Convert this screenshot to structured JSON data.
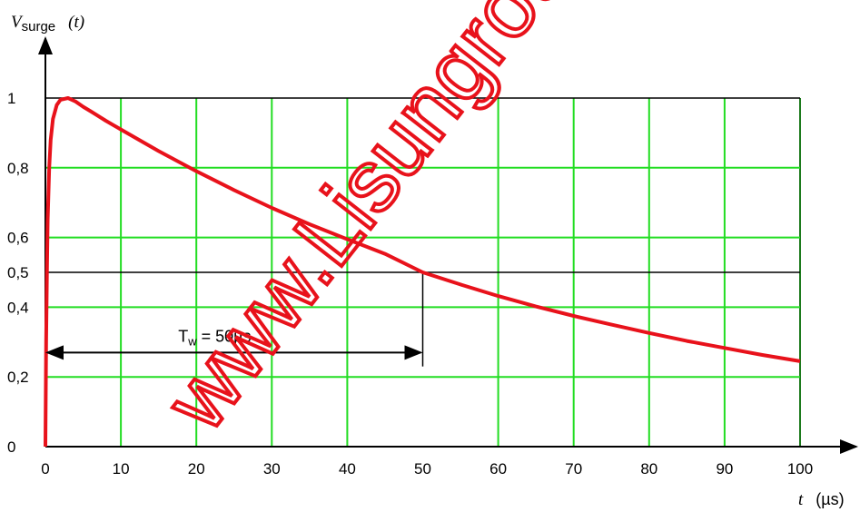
{
  "chart_data": {
    "type": "line",
    "ylabel": {
      "symbol": "V",
      "subscript": "surge",
      "arg": "(t)"
    },
    "xlabel": {
      "symbol": "t",
      "unit": "(µs)"
    },
    "xlim": [
      0,
      100
    ],
    "ylim": [
      0,
      1
    ],
    "x_ticks": [
      0,
      10,
      20,
      30,
      40,
      50,
      60,
      70,
      80,
      90,
      100
    ],
    "x_tick_labels": [
      "0",
      "10",
      "20",
      "30",
      "40",
      "50",
      "60",
      "70",
      "80",
      "90",
      "100"
    ],
    "y_ticks": [
      0,
      0.2,
      0.4,
      0.5,
      0.6,
      0.8,
      1
    ],
    "y_tick_labels": [
      "0",
      "0,2",
      "0,4",
      "0,5",
      "0,6",
      "0,8",
      "1"
    ],
    "grid": true,
    "grid_color": "#22dd22",
    "line_color": "#e8121b",
    "series": [
      {
        "x": [
          0,
          0.1,
          0.2,
          0.3,
          0.5,
          0.7,
          1,
          1.5,
          2,
          3,
          4,
          5,
          6,
          8,
          10,
          15,
          20,
          25,
          30,
          35,
          40,
          45,
          50,
          55,
          60,
          65,
          70,
          75,
          80,
          85,
          90,
          95,
          100
        ],
        "y": [
          0,
          0.3,
          0.5,
          0.65,
          0.8,
          0.88,
          0.94,
          0.98,
          0.995,
          1.0,
          0.99,
          0.975,
          0.962,
          0.935,
          0.91,
          0.848,
          0.79,
          0.736,
          0.685,
          0.638,
          0.595,
          0.553,
          0.5,
          0.465,
          0.432,
          0.402,
          0.375,
          0.35,
          0.326,
          0.303,
          0.283,
          0.263,
          0.245
        ]
      }
    ],
    "reference_line_y": 0.5,
    "marker_x": 50,
    "annotation": {
      "label": "T",
      "subscript": "w",
      "suffix": " = 50µs",
      "from_x": 0,
      "to_x": 50,
      "y": 0.27
    }
  },
  "watermark": "www.Lisungroup."
}
